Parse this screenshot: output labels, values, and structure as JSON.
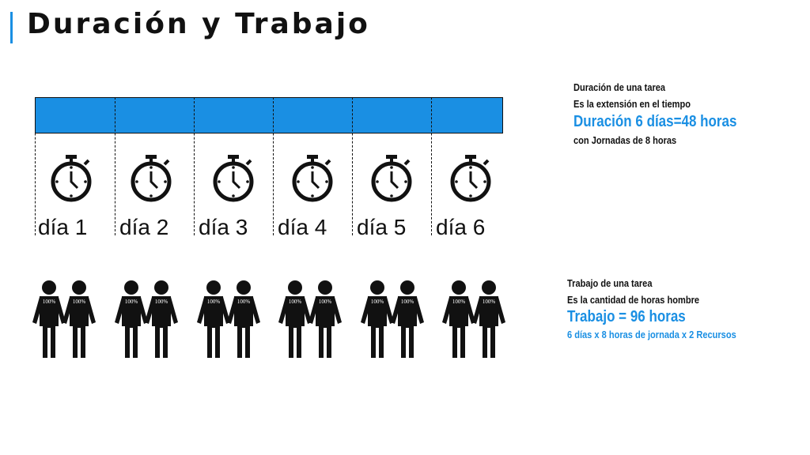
{
  "title": "Duración y Trabajo",
  "days": [
    {
      "label": "día 1",
      "badges": [
        "100%",
        "100%"
      ]
    },
    {
      "label": "día 2",
      "badges": [
        "100%",
        "100%"
      ]
    },
    {
      "label": "día 3",
      "badges": [
        "100%",
        "100%"
      ]
    },
    {
      "label": "día 4",
      "badges": [
        "100%",
        "100%"
      ]
    },
    {
      "label": "día 5",
      "badges": [
        "100%",
        "100%"
      ]
    },
    {
      "label": "día 6",
      "badges": [
        "100%",
        "100%"
      ]
    }
  ],
  "duration_info": {
    "heading": "Duración de una tarea",
    "definition": "Es la extensión en el tiempo",
    "formula": "Duración 6 días=48 horas",
    "note": "con Jornadas de 8 horas"
  },
  "work_info": {
    "heading": "Trabajo de una tarea",
    "definition": "Es la cantidad de horas hombre",
    "formula": "Trabajo = 96 horas",
    "note": "6 días x 8 horas de jornada x 2 Recursos"
  },
  "colors": {
    "accent": "#1a8fe3",
    "ink": "#111111"
  },
  "icons": [
    "stopwatch-icon",
    "person-icon"
  ]
}
